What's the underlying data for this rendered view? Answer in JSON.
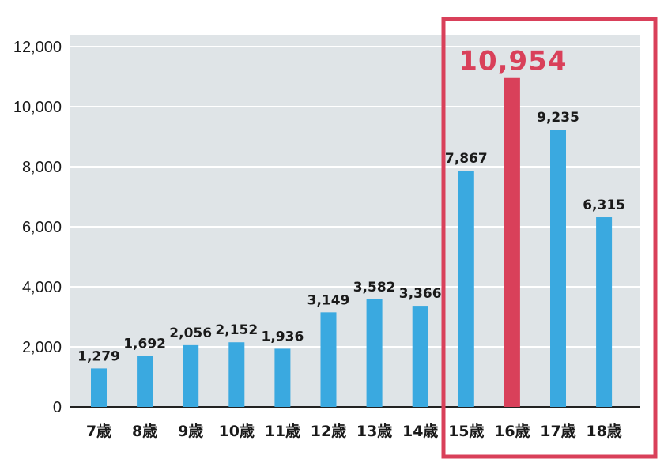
{
  "chart_data": {
    "type": "bar",
    "categories": [
      "7歳",
      "8歳",
      "9歳",
      "10歳",
      "11歳",
      "12歳",
      "13歳",
      "14歳",
      "15歳",
      "16歳",
      "17歳",
      "18歳"
    ],
    "values": [
      1279,
      1692,
      2056,
      2152,
      1936,
      3149,
      3582,
      3366,
      7867,
      10954,
      9235,
      6315
    ],
    "value_labels": [
      "1,279",
      "1,692",
      "2,056",
      "2,152",
      "1,936",
      "3,149",
      "3,582",
      "3,366",
      "7,867",
      "10,954",
      "9,235",
      "6,315"
    ],
    "y_ticks": [
      0,
      2000,
      4000,
      6000,
      8000,
      10000,
      12000
    ],
    "y_tick_labels": [
      "0",
      "2,000",
      "4,000",
      "6,000",
      "8,000",
      "10,000",
      "12,000"
    ],
    "ylim": [
      0,
      12000
    ],
    "highlight_index": 9,
    "highlight_range": [
      8,
      11
    ],
    "grid": true,
    "title": "",
    "xlabel": "",
    "ylabel": ""
  },
  "colors": {
    "bar": "#3aa9e0",
    "bar_highlight": "#d9405a",
    "box": "#d9405a",
    "plot_bg": "#dfe4e7",
    "grid": "#ffffff"
  }
}
